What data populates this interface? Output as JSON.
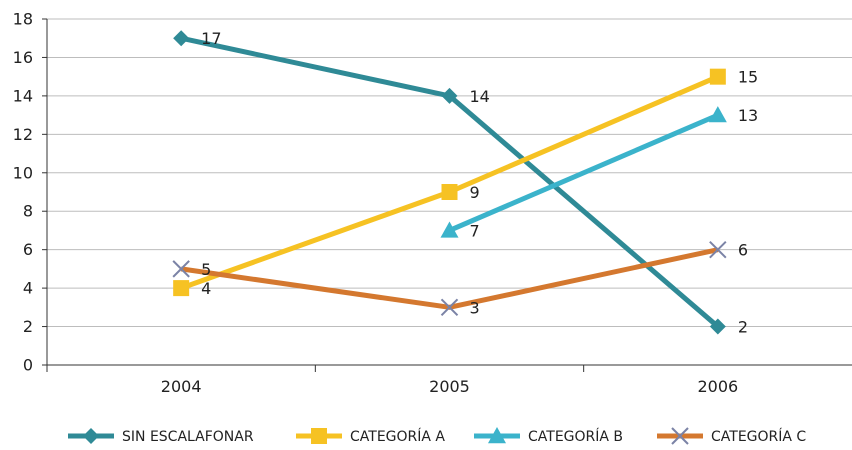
{
  "chart_data": {
    "type": "line",
    "categories": [
      "2004",
      "2005",
      "2006"
    ],
    "ylim": [
      0,
      18
    ],
    "y_ticks": [
      0,
      2,
      4,
      6,
      8,
      10,
      12,
      14,
      16,
      18
    ],
    "grid": "horizontal",
    "legend_position": "bottom",
    "series": [
      {
        "name": "SIN ESCALAFONAR",
        "values": [
          17,
          14,
          2
        ],
        "labels": [
          "17",
          "14",
          "2"
        ],
        "color": "#2f8a96",
        "marker": "diamond",
        "marker_color": "#2f8a96"
      },
      {
        "name": "CATEGORÍA A",
        "values": [
          4,
          9,
          15
        ],
        "labels": [
          "4",
          "9",
          "15"
        ],
        "color": "#f6c223",
        "marker": "square",
        "marker_color": "#f6c223"
      },
      {
        "name": "CATEGORÍA B",
        "values": [
          null,
          7,
          13
        ],
        "labels": [
          "",
          "7",
          "13"
        ],
        "color": "#3bb3cb",
        "marker": "triangle",
        "marker_color": "#3bb3cb"
      },
      {
        "name": "CATEGORÍA C",
        "values": [
          5,
          3,
          6
        ],
        "labels": [
          "5",
          "3",
          "6"
        ],
        "color": "#d4782f",
        "marker": "x",
        "marker_color": "#7b83a6"
      }
    ]
  }
}
